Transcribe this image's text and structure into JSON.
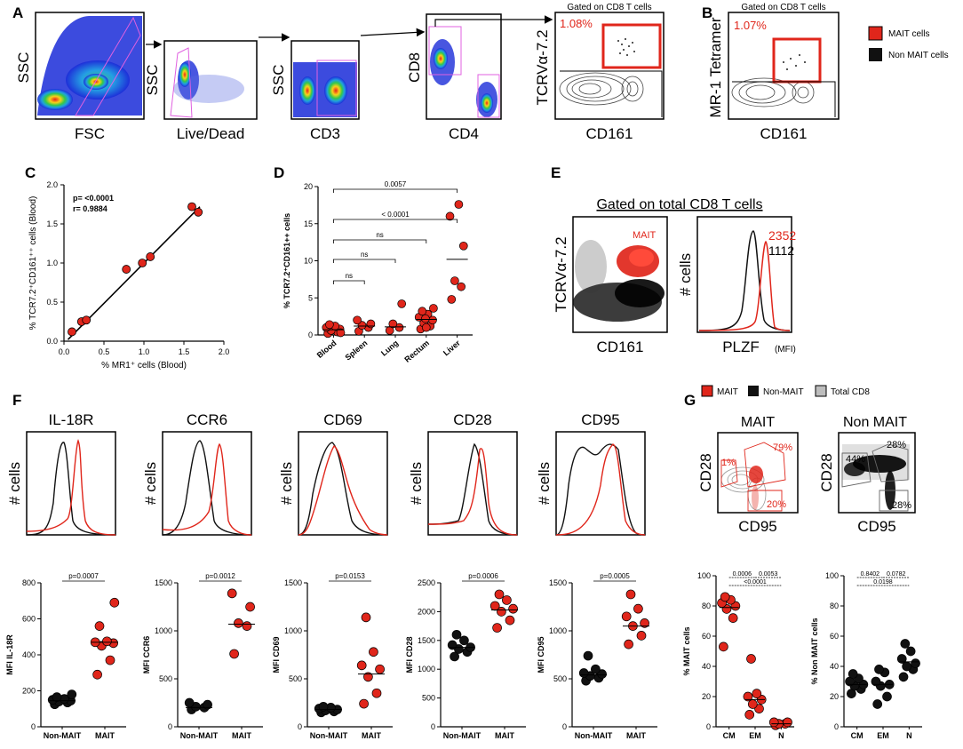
{
  "colors": {
    "mait": "#e0261b",
    "non_mait": "#111111",
    "total_cd8": "#bdbdbd",
    "gate": "#e060e0"
  },
  "panels": {
    "A": "A",
    "B": "B",
    "C": "C",
    "D": "D",
    "E": "E",
    "F": "F",
    "G": "G"
  },
  "panel_a": {
    "plot1": {
      "y": "SSC",
      "x": "FSC"
    },
    "plot2": {
      "y": "SSC",
      "x": "Live/Dead"
    },
    "plot3": {
      "y": "SSC",
      "x": "CD3"
    },
    "plot4": {
      "y": "CD8",
      "x": "CD4"
    },
    "plot5": {
      "title": "Gated on CD8 T cells",
      "y": "TCRVα-7.2",
      "x": "CD161",
      "pct": "1.08%"
    }
  },
  "panel_b": {
    "title": "Gated on CD8 T cells",
    "y": "MR-1 Tetramer",
    "x": "CD161",
    "pct": "1.07%"
  },
  "legend_top": {
    "mait": "MAIT cells",
    "non_mait": "Non MAIT cells"
  },
  "chart_data": [
    {
      "id": "C",
      "type": "scatter",
      "xlabel": "% MR1⁺ cells (Blood)",
      "ylabel": "% TCR7.2⁺CD161⁺⁺ cells (Blood)",
      "xlim": [
        0,
        2.0
      ],
      "ylim": [
        0,
        2.0
      ],
      "xticks": [
        "0.0",
        "0.5",
        "1.0",
        "1.5",
        "2.0"
      ],
      "yticks": [
        "0.0",
        "0.5",
        "1.0",
        "1.5",
        "2.0"
      ],
      "annotation_p": "p= <0.0001",
      "annotation_r": "r= 0.9884",
      "points": [
        [
          0.1,
          0.12
        ],
        [
          0.22,
          0.25
        ],
        [
          0.28,
          0.27
        ],
        [
          0.78,
          0.92
        ],
        [
          0.98,
          1.0
        ],
        [
          1.08,
          1.08
        ],
        [
          1.6,
          1.72
        ],
        [
          1.68,
          1.65
        ]
      ],
      "fit": [
        [
          0.05,
          0.02
        ],
        [
          1.7,
          1.72
        ]
      ]
    },
    {
      "id": "D",
      "type": "scatter",
      "ylabel": "% TCR7.2⁺CD161++ cells",
      "categories": [
        "Blood",
        "Spleen",
        "Lung",
        "Rectum",
        "Liver"
      ],
      "ylim": [
        0,
        20
      ],
      "yticks": [
        "0",
        "5",
        "10",
        "15",
        "20"
      ],
      "values": [
        [
          0.2,
          0.4,
          0.6,
          0.8,
          1.0,
          1.2,
          1.4,
          0.3
        ],
        [
          0.5,
          1.0,
          1.3,
          1.5,
          2.0
        ],
        [
          0.6,
          1.0,
          1.5,
          4.2
        ],
        [
          0.8,
          1.2,
          1.6,
          2.0,
          2.4,
          2.8,
          3.2,
          3.6,
          1.0,
          2.2
        ],
        [
          4.8,
          6.5,
          7.3,
          12.0,
          16.0,
          17.6
        ]
      ],
      "medians": [
        0.7,
        1.2,
        1.1,
        2.1,
        10.2
      ],
      "comparisons": [
        {
          "a": 0,
          "b": 1,
          "label": "ns"
        },
        {
          "a": 0,
          "b": 2,
          "label": "ns"
        },
        {
          "a": 0,
          "b": 3,
          "label": "ns"
        },
        {
          "a": 0,
          "b": 4,
          "label": "< 0.0001"
        },
        {
          "a": 0,
          "b": 4,
          "label": "0.0057"
        }
      ]
    },
    {
      "id": "F-IL18R",
      "type": "scatter",
      "title": "IL-18R",
      "ylabel": "MFI IL-18R",
      "categories": [
        "Non-MAIT",
        "MAIT"
      ],
      "ylim": [
        0,
        800
      ],
      "yticks": [
        "0",
        "200",
        "400",
        "600",
        "800"
      ],
      "pvalue": "p=0.0007",
      "values": [
        [
          125,
          135,
          140,
          145,
          150,
          155,
          165,
          180
        ],
        [
          290,
          370,
          450,
          465,
          470,
          475,
          560,
          690
        ]
      ],
      "medians": [
        145,
        470
      ]
    },
    {
      "id": "F-CCR6",
      "type": "scatter",
      "title": "CCR6",
      "ylabel": "MFI CCR6",
      "categories": [
        "Non-MAIT",
        "MAIT"
      ],
      "ylim": [
        0,
        1500
      ],
      "yticks": [
        "0",
        "500",
        "1000",
        "1500"
      ],
      "pvalue": "p=0.0012",
      "values": [
        [
          180,
          200,
          210,
          230,
          250
        ],
        [
          760,
          1050,
          1080,
          1250,
          1390
        ]
      ],
      "medians": [
        200,
        1070
      ]
    },
    {
      "id": "F-CD69",
      "type": "scatter",
      "title": "CD69",
      "ylabel": "MFI CD69",
      "categories": [
        "Non-MAIT",
        "MAIT"
      ],
      "ylim": [
        0,
        1500
      ],
      "yticks": [
        "0",
        "500",
        "1000",
        "1500"
      ],
      "pvalue": "p=0.0153",
      "values": [
        [
          150,
          160,
          170,
          180,
          190,
          200,
          210
        ],
        [
          240,
          350,
          520,
          600,
          640,
          780,
          1140
        ]
      ],
      "medians": [
        180,
        550
      ]
    },
    {
      "id": "F-CD28",
      "type": "scatter",
      "title": "CD28",
      "ylabel": "MFI CD28",
      "categories": [
        "Non-MAIT",
        "MAIT"
      ],
      "ylim": [
        0,
        2500
      ],
      "yticks": [
        "0",
        "500",
        "1000",
        "1500",
        "2000",
        "2500"
      ],
      "pvalue": "p=0.0006",
      "values": [
        [
          1220,
          1300,
          1350,
          1380,
          1420,
          1500,
          1600
        ],
        [
          1720,
          1850,
          2000,
          2050,
          2100,
          2200,
          2300
        ]
      ],
      "medians": [
        1380,
        2030
      ]
    },
    {
      "id": "F-CD95",
      "type": "scatter",
      "title": "CD95",
      "ylabel": "MFI CD95",
      "categories": [
        "Non-MAIT",
        "MAIT"
      ],
      "ylim": [
        0,
        1500
      ],
      "yticks": [
        "0",
        "500",
        "1000",
        "1500"
      ],
      "pvalue": "p=0.0005",
      "values": [
        [
          480,
          510,
          530,
          550,
          560,
          600,
          740
        ],
        [
          860,
          950,
          1050,
          1080,
          1150,
          1230,
          1380
        ]
      ],
      "medians": [
        540,
        1050
      ]
    },
    {
      "id": "G-MAIT",
      "type": "scatter",
      "ylabel": "% MAIT cells",
      "categories": [
        "CM",
        "EM",
        "N"
      ],
      "ylim": [
        0,
        100
      ],
      "yticks": [
        "0",
        "20",
        "40",
        "60",
        "80",
        "100"
      ],
      "values": [
        [
          53,
          72,
          78,
          80,
          82,
          84,
          86
        ],
        [
          8,
          12,
          15,
          18,
          20,
          22,
          45
        ],
        [
          1,
          2,
          2,
          3,
          3
        ]
      ],
      "medians": [
        79,
        18,
        2
      ],
      "comparisons": [
        {
          "a": 0,
          "b": 1,
          "label": "0.0006"
        },
        {
          "a": 1,
          "b": 2,
          "label": "0.0053"
        },
        {
          "a": 0,
          "b": 2,
          "label": "<0.0001"
        }
      ]
    },
    {
      "id": "G-NonMAIT",
      "type": "scatter",
      "ylabel": "% Non MAIT cells",
      "categories": [
        "CM",
        "EM",
        "N"
      ],
      "ylim": [
        0,
        100
      ],
      "yticks": [
        "0",
        "20",
        "40",
        "60",
        "80",
        "100"
      ],
      "values": [
        [
          22,
          25,
          27,
          28,
          30,
          32,
          35
        ],
        [
          15,
          20,
          27,
          28,
          30,
          36,
          38
        ],
        [
          33,
          38,
          40,
          42,
          45,
          50,
          55
        ]
      ],
      "medians": [
        28,
        28,
        43
      ],
      "comparisons": [
        {
          "a": 0,
          "b": 1,
          "label": "0.8402"
        },
        {
          "a": 1,
          "b": 2,
          "label": "0.0782"
        },
        {
          "a": 0,
          "b": 2,
          "label": "0.0198"
        }
      ]
    }
  ],
  "panel_e": {
    "subtitle": "Gated on total CD8 T cells",
    "dot_y": "TCRVα-7.2",
    "dot_x": "CD161",
    "mait_label": "MAIT",
    "hist_y": "# cells",
    "hist_x": "PLZF",
    "hist_x_unit": "(MFI)",
    "mfi_mait": "2352",
    "mfi_non": "1112"
  },
  "panel_f_hist_ylabel": "# cells",
  "panel_g": {
    "legend": {
      "mait": "MAIT",
      "non_mait": "Non-MAIT",
      "total": "Total CD8"
    },
    "mait_title": "MAIT",
    "non_title": "Non MAIT",
    "y": "CD28",
    "x": "CD95",
    "mait_pcts": {
      "cm": "79%",
      "em": "20%",
      "n": "1%"
    },
    "non_pcts": {
      "cm": "28%",
      "em": "28%",
      "n": "44%"
    }
  }
}
